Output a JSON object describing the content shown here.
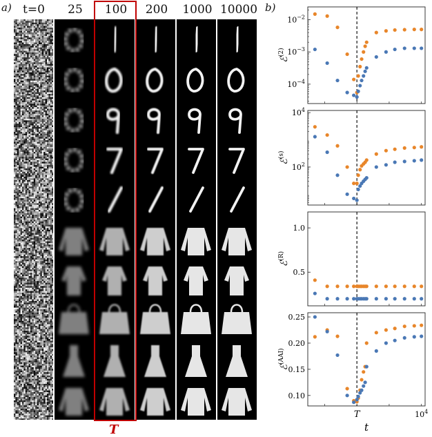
{
  "panel_a": {
    "label": "a)",
    "column_headers": [
      "t=0",
      "25",
      "100",
      "200",
      "1000",
      "10000"
    ],
    "highlight_label": "T",
    "highlight_color": "#c00000",
    "rows": [
      "digit-1",
      "digit-0",
      "digit-9",
      "digit-7",
      "digit-1b",
      "sweater",
      "shirt",
      "bag",
      "dress",
      "pullover"
    ]
  },
  "panel_b": {
    "label": "b)",
    "x_axis_label": "t",
    "x_tick_T": "T",
    "x_tick_end": "10",
    "x_tick_end_exp": "4",
    "colors": {
      "orange": "#e8862a",
      "blue": "#4a78b5"
    }
  },
  "chart_data": [
    {
      "type": "scatter",
      "ylabel": "ℰ(2)",
      "ylabel_main": "ℰ",
      "ylabel_sup": "(2)",
      "yscale": "log",
      "yticks": [
        {
          "base": "10",
          "exp": "−2",
          "value": 0.01
        },
        {
          "base": "10",
          "exp": "−3",
          "value": 0.001
        },
        {
          "base": "10",
          "exp": "−4",
          "value": 0.0001
        }
      ],
      "ylim": [
        2.5e-05,
        0.025
      ],
      "series": [
        {
          "color": "orange",
          "points": [
            [
              5,
              0.015
            ],
            [
              12,
              0.013
            ],
            [
              25,
              0.0058
            ],
            [
              50,
              0.00085
            ],
            [
              80,
              0.00014
            ],
            [
              100,
              5.5e-05
            ],
            [
              110,
              0.00018
            ],
            [
              125,
              0.00035
            ],
            [
              140,
              0.0006
            ],
            [
              160,
              0.001
            ],
            [
              180,
              0.0015
            ],
            [
              200,
              0.002
            ],
            [
              400,
              0.004
            ],
            [
              800,
              0.0045
            ],
            [
              1500,
              0.0048
            ],
            [
              3000,
              0.0049
            ],
            [
              6000,
              0.005
            ],
            [
              10000,
              0.005
            ]
          ]
        },
        {
          "color": "blue",
          "points": [
            [
              5,
              0.0012
            ],
            [
              12,
              0.00045
            ],
            [
              25,
              0.00013
            ],
            [
              50,
              5.5e-05
            ],
            [
              80,
              4.5e-05
            ],
            [
              100,
              4e-05
            ],
            [
              110,
              6e-05
            ],
            [
              125,
              9e-05
            ],
            [
              140,
              0.00013
            ],
            [
              160,
              0.00018
            ],
            [
              180,
              0.00025
            ],
            [
              200,
              0.00032
            ],
            [
              400,
              0.0007
            ],
            [
              800,
              0.001
            ],
            [
              1500,
              0.0012
            ],
            [
              3000,
              0.0013
            ],
            [
              6000,
              0.0013
            ],
            [
              10000,
              0.0013
            ]
          ]
        }
      ]
    },
    {
      "type": "scatter",
      "ylabel": "ℰ(s)",
      "ylabel_main": "ℰ",
      "ylabel_sup": "(s)",
      "yscale": "log",
      "yticks": [
        {
          "base": "10",
          "exp": "4",
          "value": 10000
        },
        {
          "base": "10",
          "exp": "2",
          "value": 100
        }
      ],
      "ylim": [
        4,
        12000
      ],
      "series": [
        {
          "color": "orange",
          "points": [
            [
              5,
              3000
            ],
            [
              12,
              1500
            ],
            [
              25,
              600
            ],
            [
              50,
              100
            ],
            [
              80,
              25
            ],
            [
              100,
              25
            ],
            [
              110,
              50
            ],
            [
              125,
              80
            ],
            [
              140,
              110
            ],
            [
              160,
              130
            ],
            [
              180,
              150
            ],
            [
              200,
              180
            ],
            [
              400,
              300
            ],
            [
              800,
              400
            ],
            [
              1500,
              450
            ],
            [
              3000,
              500
            ],
            [
              6000,
              520
            ],
            [
              10000,
              550
            ]
          ]
        },
        {
          "color": "blue",
          "points": [
            [
              5,
              1300
            ],
            [
              12,
              350
            ],
            [
              25,
              50
            ],
            [
              50,
              10
            ],
            [
              80,
              7
            ],
            [
              100,
              6
            ],
            [
              110,
              15
            ],
            [
              125,
              20
            ],
            [
              140,
              25
            ],
            [
              160,
              30
            ],
            [
              180,
              35
            ],
            [
              200,
              40
            ],
            [
              400,
              100
            ],
            [
              800,
              120
            ],
            [
              1500,
              150
            ],
            [
              3000,
              160
            ],
            [
              6000,
              170
            ],
            [
              10000,
              180
            ]
          ]
        }
      ]
    },
    {
      "type": "scatter",
      "ylabel": "ℰ(R)",
      "ylabel_main": "ℰ",
      "ylabel_sup": "(R)",
      "yscale": "linear",
      "yticks": [
        {
          "label": "1.0",
          "value": 1.0
        },
        {
          "label": "0.5",
          "value": 0.5
        }
      ],
      "ylim": [
        0.12,
        1.18
      ],
      "series": [
        {
          "color": "orange",
          "points": [
            [
              5,
              0.41
            ],
            [
              12,
              0.34
            ],
            [
              25,
              0.34
            ],
            [
              50,
              0.34
            ],
            [
              80,
              0.34
            ],
            [
              100,
              0.34
            ],
            [
              110,
              0.34
            ],
            [
              125,
              0.34
            ],
            [
              140,
              0.34
            ],
            [
              160,
              0.34
            ],
            [
              180,
              0.34
            ],
            [
              200,
              0.34
            ],
            [
              400,
              0.34
            ],
            [
              800,
              0.34
            ],
            [
              1500,
              0.34
            ],
            [
              3000,
              0.34
            ],
            [
              6000,
              0.34
            ],
            [
              10000,
              0.34
            ]
          ]
        },
        {
          "color": "blue",
          "points": [
            [
              5,
              0.26
            ],
            [
              12,
              0.2
            ],
            [
              25,
              0.2
            ],
            [
              50,
              0.2
            ],
            [
              80,
              0.2
            ],
            [
              100,
              0.2
            ],
            [
              110,
              0.2
            ],
            [
              125,
              0.2
            ],
            [
              140,
              0.2
            ],
            [
              160,
              0.2
            ],
            [
              180,
              0.2
            ],
            [
              200,
              0.2
            ],
            [
              400,
              0.2
            ],
            [
              800,
              0.2
            ],
            [
              1500,
              0.2
            ],
            [
              3000,
              0.2
            ],
            [
              6000,
              0.2
            ],
            [
              10000,
              0.2
            ]
          ]
        }
      ]
    },
    {
      "type": "scatter",
      "ylabel": "ℰ(AAI)",
      "ylabel_main": "ℰ",
      "ylabel_sup": "(AAI)",
      "yscale": "linear",
      "yticks": [
        {
          "label": "0.25",
          "value": 0.25
        },
        {
          "label": "0.20",
          "value": 0.2
        },
        {
          "label": "0.15",
          "value": 0.15
        },
        {
          "label": "0.10",
          "value": 0.1
        }
      ],
      "ylim": [
        0.08,
        0.258
      ],
      "series": [
        {
          "color": "orange",
          "points": [
            [
              5,
              0.212
            ],
            [
              12,
              0.225
            ],
            [
              25,
              0.213
            ],
            [
              50,
              0.113
            ],
            [
              80,
              0.09
            ],
            [
              100,
              0.088
            ],
            [
              110,
              0.095
            ],
            [
              125,
              0.11
            ],
            [
              140,
              0.13
            ],
            [
              160,
              0.145
            ],
            [
              180,
              0.155
            ],
            [
              200,
              0.2
            ],
            [
              400,
              0.22
            ],
            [
              800,
              0.225
            ],
            [
              1500,
              0.228
            ],
            [
              3000,
              0.232
            ],
            [
              6000,
              0.233
            ],
            [
              10000,
              0.234
            ]
          ]
        },
        {
          "color": "blue",
          "points": [
            [
              5,
              0.25
            ],
            [
              12,
              0.222
            ],
            [
              25,
              0.177
            ],
            [
              50,
              0.1
            ],
            [
              80,
              0.087
            ],
            [
              100,
              0.092
            ],
            [
              110,
              0.098
            ],
            [
              125,
              0.105
            ],
            [
              140,
              0.11
            ],
            [
              160,
              0.118
            ],
            [
              180,
              0.125
            ],
            [
              200,
              0.155
            ],
            [
              400,
              0.185
            ],
            [
              800,
              0.2
            ],
            [
              1500,
              0.205
            ],
            [
              3000,
              0.21
            ],
            [
              6000,
              0.212
            ],
            [
              10000,
              0.213
            ]
          ]
        }
      ]
    }
  ]
}
